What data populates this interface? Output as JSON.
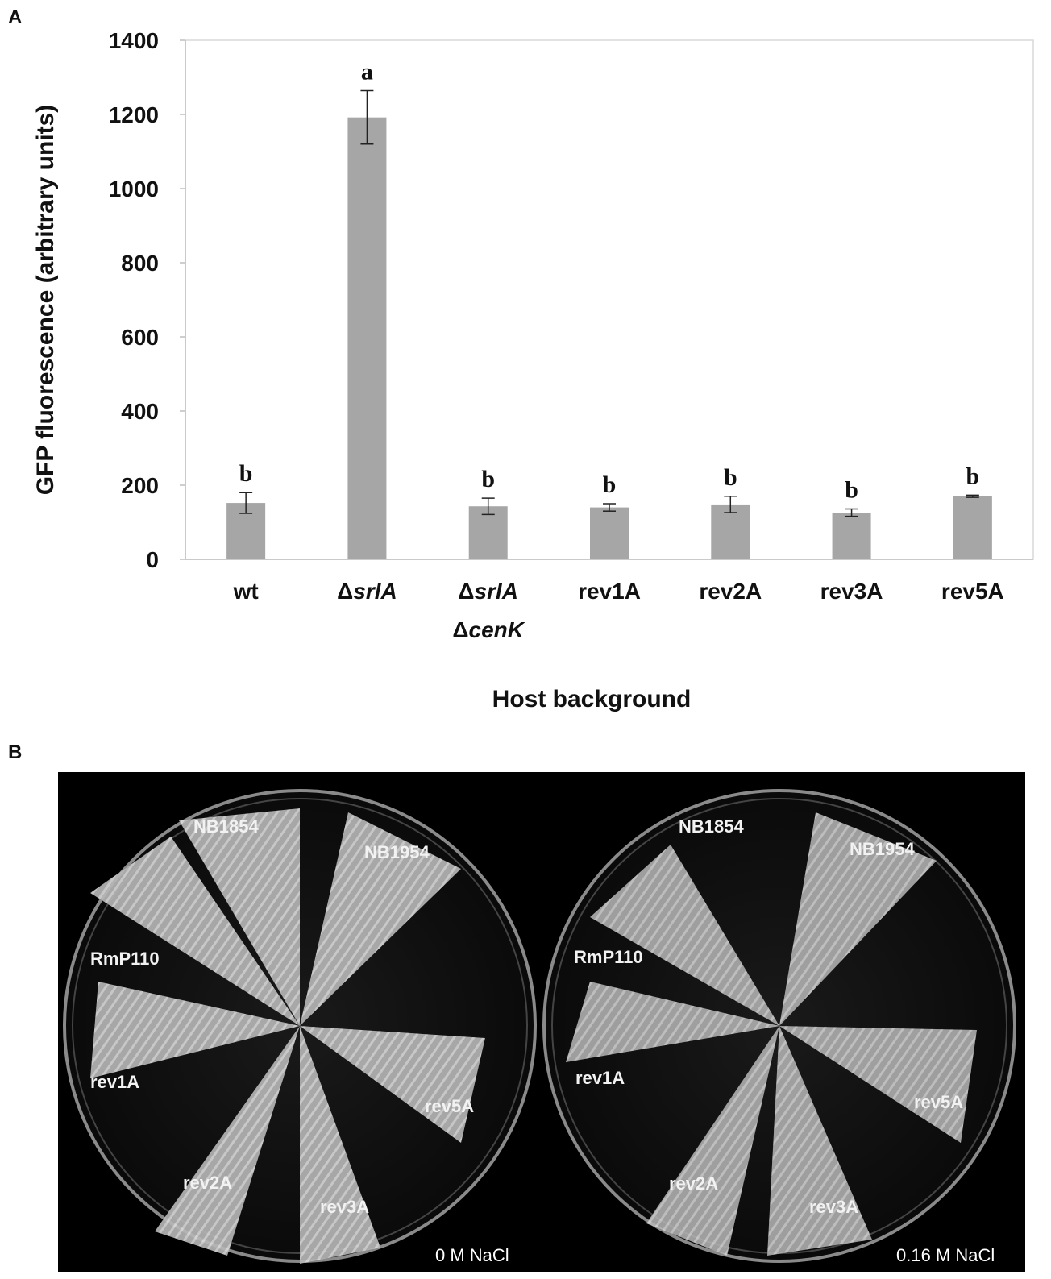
{
  "panels": {
    "a": "A",
    "b": "B"
  },
  "chart_data": {
    "type": "bar",
    "categories": [
      {
        "parts": [
          {
            "text": "wt",
            "italic": false
          }
        ]
      },
      {
        "parts": [
          {
            "text": "Δ",
            "italic": false
          },
          {
            "text": "srlA",
            "italic": true
          }
        ]
      },
      {
        "parts": [
          {
            "text": "Δ",
            "italic": false
          },
          {
            "text": "srlA",
            "italic": true
          }
        ],
        "line2": [
          {
            "text": "Δ",
            "italic": false
          },
          {
            "text": "cenK",
            "italic": true
          }
        ]
      },
      {
        "parts": [
          {
            "text": "rev1A",
            "italic": false
          }
        ]
      },
      {
        "parts": [
          {
            "text": "rev2A",
            "italic": false
          }
        ]
      },
      {
        "parts": [
          {
            "text": "rev3A",
            "italic": false
          }
        ]
      },
      {
        "parts": [
          {
            "text": "rev5A",
            "italic": false
          }
        ]
      }
    ],
    "values": [
      152,
      1192,
      143,
      140,
      148,
      126,
      170
    ],
    "errors": [
      28,
      72,
      22,
      10,
      22,
      10,
      3
    ],
    "significance": [
      "b",
      "a",
      "b",
      "b",
      "b",
      "b",
      "b"
    ],
    "xlabel": "Host background",
    "ylabel": "GFP fluorescence (arbitrary units)",
    "ylim": [
      0,
      1400
    ],
    "yticks": [
      0,
      200,
      400,
      600,
      800,
      1000,
      1200,
      1400
    ],
    "bar_color": "#a6a6a6",
    "grid": false
  },
  "photo": {
    "left_plate": {
      "labels": [
        "NB1854",
        "NB1954",
        "RmP110",
        "rev1A",
        "rev5A",
        "rev2A",
        "rev3A"
      ],
      "condition": "0 M NaCl"
    },
    "right_plate": {
      "labels": [
        "NB1854",
        "NB1954",
        "RmP110",
        "rev1A",
        "rev5A",
        "rev2A",
        "rev3A"
      ],
      "condition": "0.16 M NaCl"
    }
  }
}
